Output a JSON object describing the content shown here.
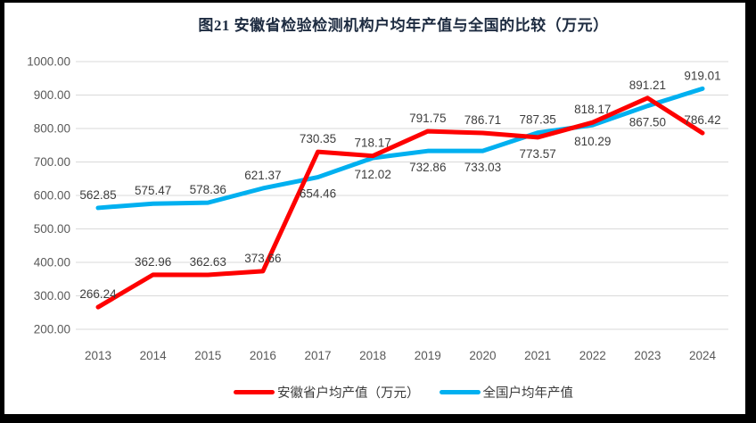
{
  "chart_data": {
    "type": "line",
    "title": "图21 安徽省检验检测机构户均年产值与全国的比较（万元）",
    "x": [
      "2013",
      "2014",
      "2015",
      "2016",
      "2017",
      "2018",
      "2019",
      "2020",
      "2021",
      "2022",
      "2023",
      "2024"
    ],
    "series": [
      {
        "name": "安徽省户均产值（万元）",
        "color": "#fe0000",
        "values": [
          266.24,
          362.96,
          362.63,
          373.66,
          730.35,
          718.17,
          791.75,
          786.71,
          773.57,
          818.17,
          891.21,
          786.42
        ],
        "label_side": [
          "above",
          "above",
          "above",
          "above",
          "above",
          "above",
          "above",
          "above",
          "below",
          "above",
          "above",
          "above"
        ]
      },
      {
        "name": "全国户均年产值",
        "color": "#00b0f0",
        "values": [
          562.85,
          575.47,
          578.36,
          621.37,
          654.46,
          712.02,
          732.86,
          733.03,
          787.35,
          810.29,
          867.5,
          919.01
        ],
        "label_side": [
          "above",
          "above",
          "above",
          "above",
          "below",
          "below",
          "below",
          "below",
          "above",
          "below",
          "below",
          "above"
        ]
      }
    ],
    "ylim": [
      200,
      1000
    ],
    "ytick_step": 100,
    "ytick_labels": [
      "200.00",
      "300.00",
      "400.00",
      "500.00",
      "600.00",
      "700.00",
      "800.00",
      "900.00",
      "1000.00"
    ],
    "value_label_decimals": 2,
    "grid": "horizontal",
    "legend_position": "bottom",
    "colors": {
      "grid_line": "#d9d9d9",
      "axis_text": "#595959",
      "value_label_text": "#3d3d3d",
      "title_text": "#1d2b40",
      "frame_border": "#000000"
    }
  }
}
